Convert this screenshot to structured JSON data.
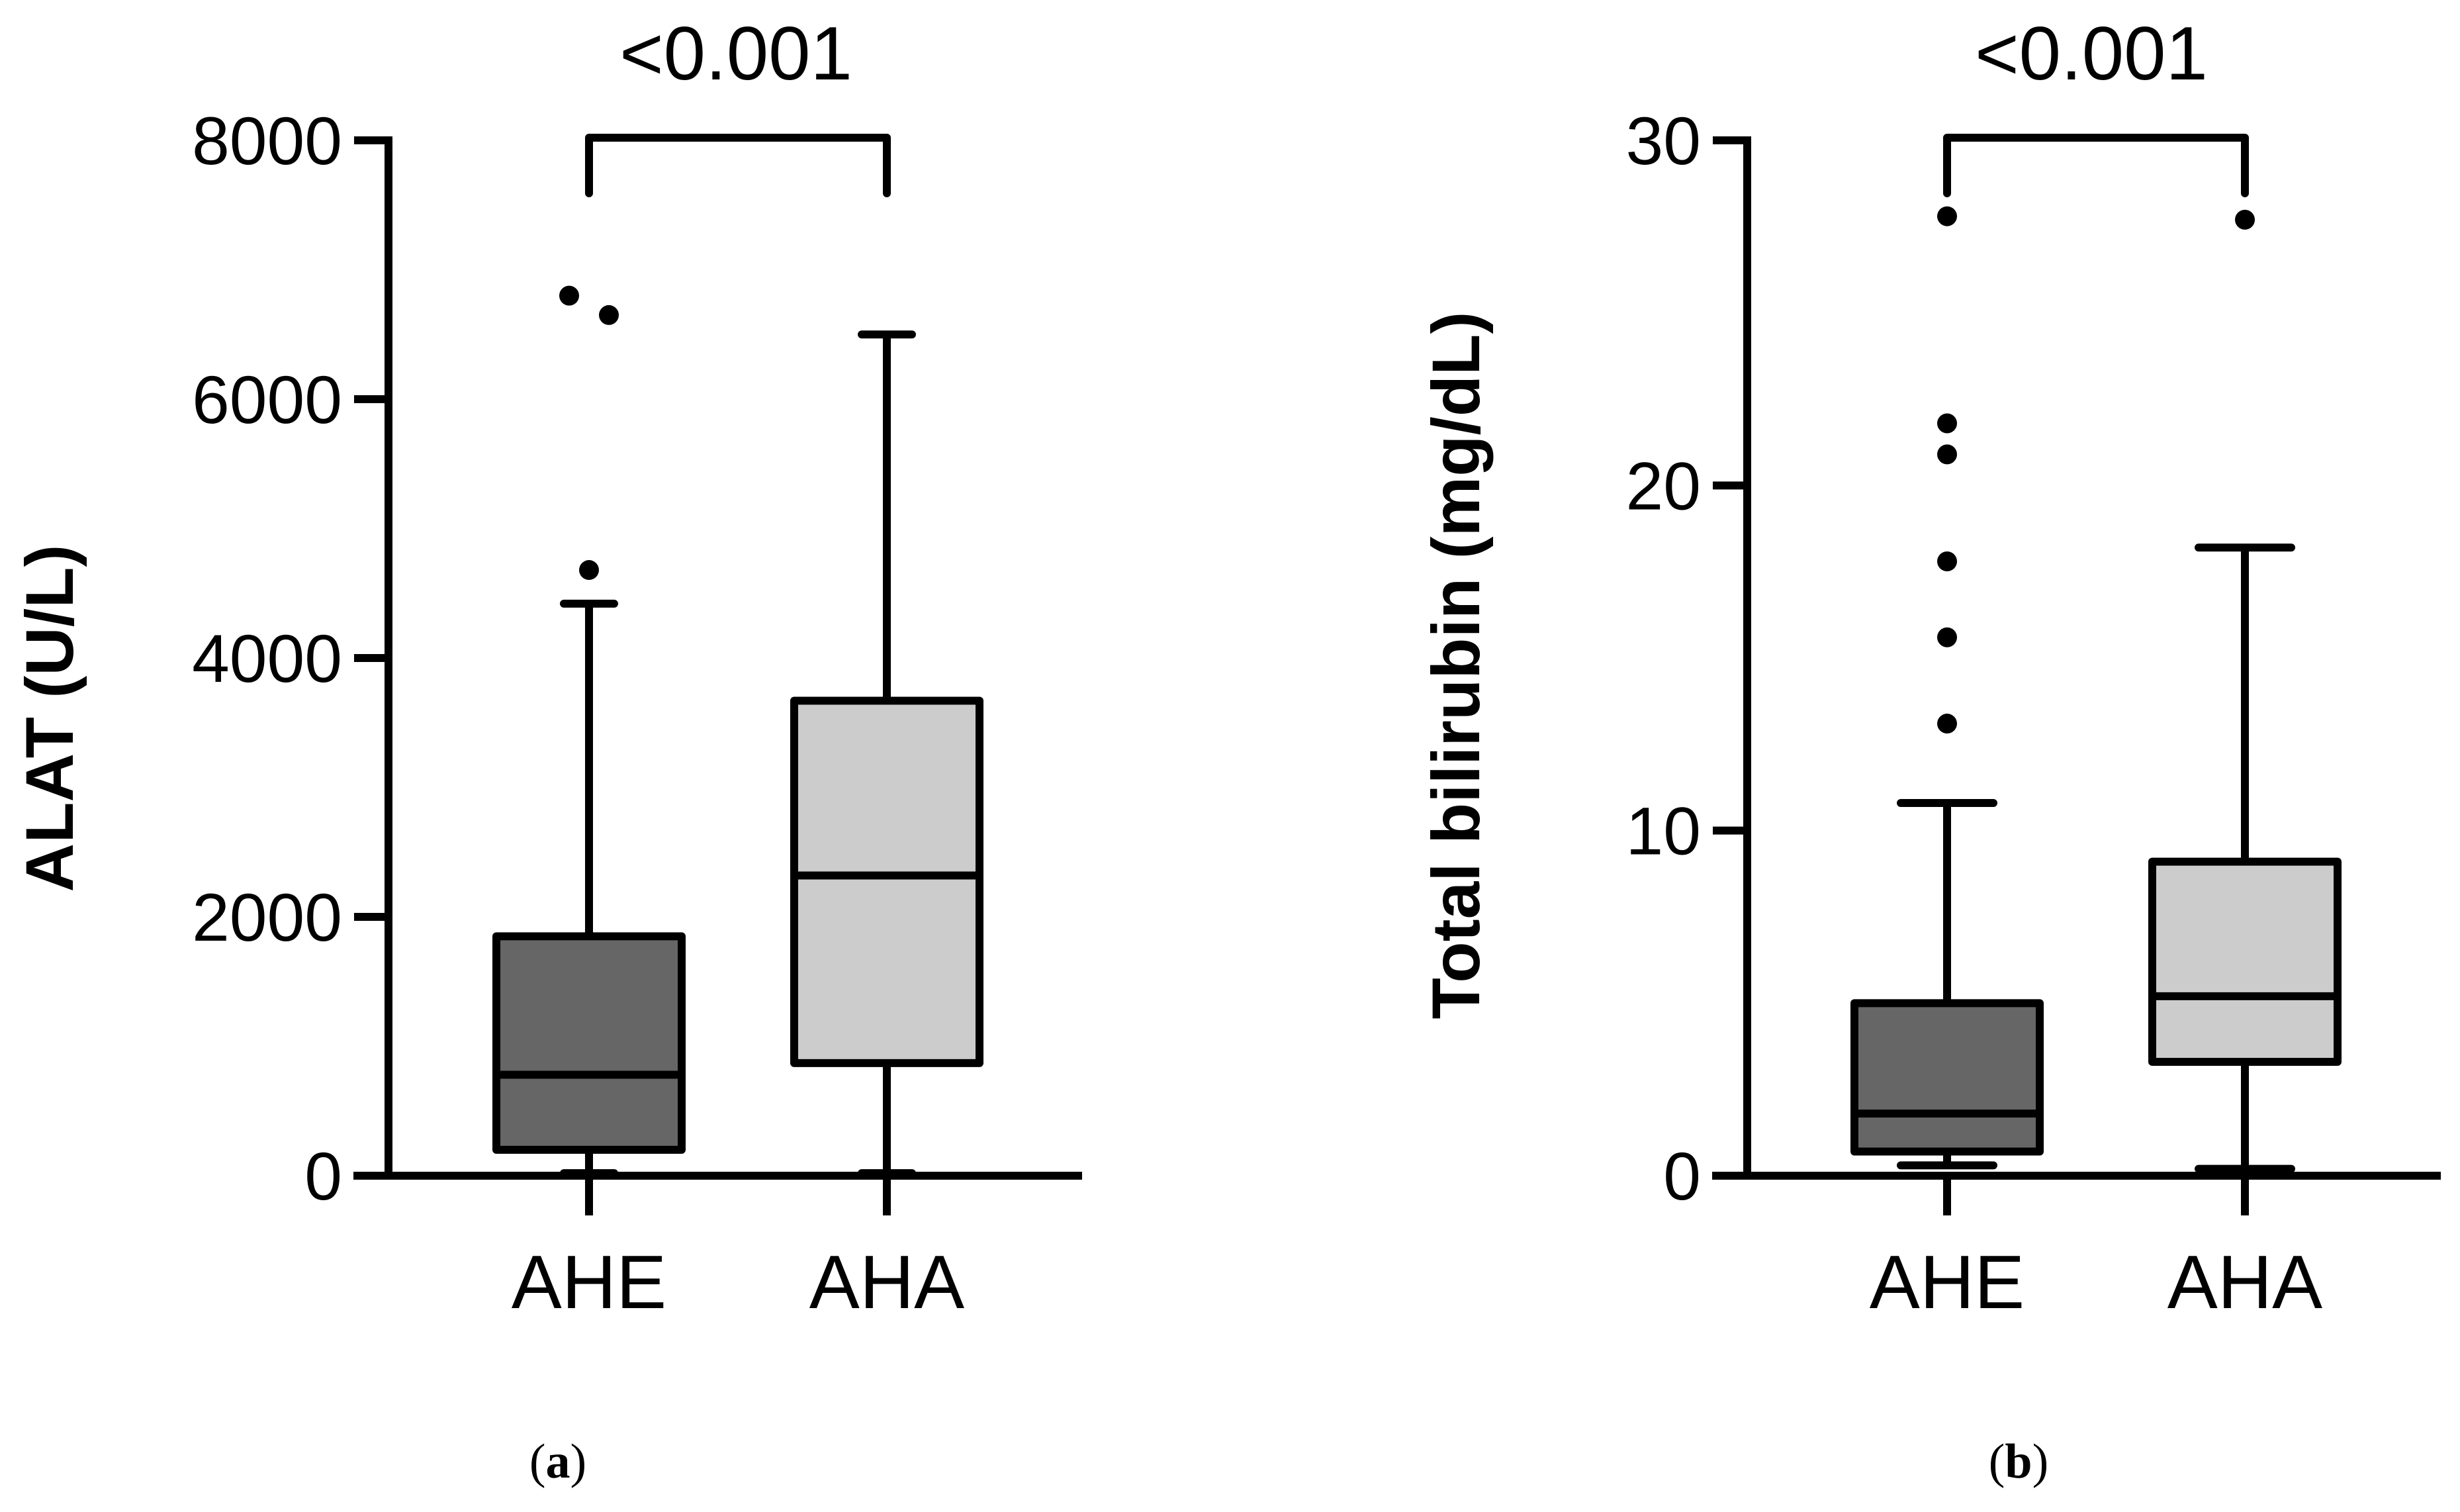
{
  "chart_data": [
    {
      "type": "box",
      "panel_label": "a",
      "title": "",
      "xlabel": "",
      "ylabel": "ALAT (U/L)",
      "ylim": [
        0,
        8000
      ],
      "yticks": [
        "0",
        "2000",
        "4000",
        "6000",
        "8000"
      ],
      "categories": [
        "AHE",
        "AHA"
      ],
      "series": [
        {
          "name": "AHE",
          "min": 20,
          "q1": 200,
          "median": 780,
          "q3": 1850,
          "max": 4420,
          "outliers": [
            4680,
            6650,
            6800
          ],
          "color": "#666666"
        },
        {
          "name": "AHA",
          "min": 20,
          "q1": 870,
          "median": 2320,
          "q3": 3670,
          "max": 6500,
          "outliers": [],
          "color": "#cccccc"
        }
      ],
      "comparison": {
        "text": "<0.001"
      }
    },
    {
      "type": "box",
      "panel_label": "b",
      "title": "",
      "xlabel": "",
      "ylabel": "Total bilirubin (mg/dL)",
      "ylim": [
        0,
        30
      ],
      "yticks": [
        "0",
        "10",
        "20",
        "30"
      ],
      "categories": [
        "AHE",
        "AHA"
      ],
      "series": [
        {
          "name": "AHE",
          "min": 0.3,
          "q1": 0.7,
          "median": 1.8,
          "q3": 5.0,
          "max": 10.8,
          "outliers": [
            13.1,
            15.6,
            17.8,
            20.9,
            21.8,
            27.8
          ],
          "color": "#666666"
        },
        {
          "name": "AHA",
          "min": 0.2,
          "q1": 3.3,
          "median": 5.2,
          "q3": 9.1,
          "max": 18.2,
          "outliers": [
            27.7
          ],
          "color": "#cccccc"
        }
      ],
      "comparison": {
        "text": "<0.001"
      }
    }
  ]
}
